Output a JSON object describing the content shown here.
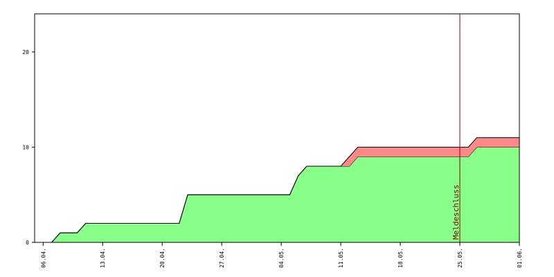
{
  "chart_data": {
    "type": "stacked_area",
    "x": [
      0,
      2,
      3,
      5,
      6,
      17,
      18,
      30,
      31,
      32,
      36,
      37,
      38,
      51,
      52,
      57
    ],
    "series": [
      {
        "color": "#88ff88",
        "values": [
          0,
          0,
          1,
          1,
          2,
          2,
          5,
          5,
          7,
          8,
          8,
          8,
          9,
          9,
          10,
          10
        ]
      },
      {
        "color": "#ff8888",
        "values": [
          0,
          0,
          0,
          0,
          0,
          0,
          0,
          0,
          0,
          0,
          0,
          1,
          1,
          1,
          1,
          1
        ]
      }
    ],
    "xlim": [
      0,
      57
    ],
    "xticks": [
      {
        "value": 1,
        "label": "06.04."
      },
      {
        "value": 8,
        "label": "13.04."
      },
      {
        "value": 15,
        "label": "20.04."
      },
      {
        "value": 22,
        "label": "27.04."
      },
      {
        "value": 29,
        "label": "04.05."
      },
      {
        "value": 36,
        "label": "11.05."
      },
      {
        "value": 43,
        "label": "18.05."
      },
      {
        "value": 50,
        "label": "25.05."
      },
      {
        "value": 57,
        "label": "01.06."
      }
    ],
    "ylim": [
      0,
      24
    ],
    "yticks": [
      0,
      10,
      20
    ],
    "annotation": {
      "x": 50,
      "label": "Meldeschluss",
      "color": "#800000"
    }
  }
}
